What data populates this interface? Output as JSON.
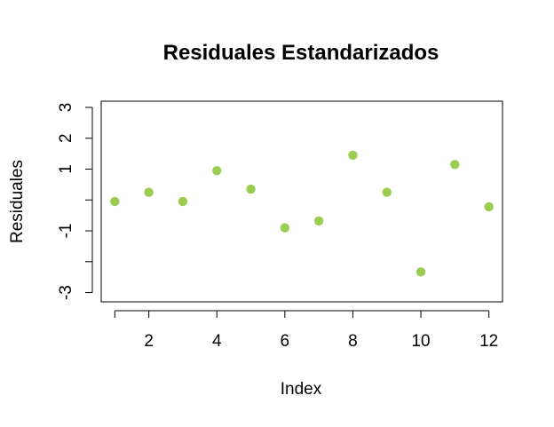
{
  "chart_data": {
    "type": "scatter",
    "title": "Residuales Estandarizados",
    "xlabel": "Index",
    "ylabel": "Residuales",
    "x": [
      1,
      2,
      3,
      4,
      5,
      6,
      7,
      8,
      9,
      10,
      11,
      12
    ],
    "y": [
      -0.05,
      0.25,
      -0.05,
      0.95,
      0.35,
      -0.9,
      -0.68,
      1.45,
      0.25,
      -2.33,
      1.15,
      -0.22
    ],
    "xlim": [
      0.6,
      12.4
    ],
    "ylim": [
      -3.3,
      3.2
    ],
    "x_ticks": [
      2,
      4,
      6,
      8,
      10,
      12
    ],
    "x_tick_labels": [
      "2",
      "4",
      "6",
      "8",
      "10",
      "12"
    ],
    "y_ticks": [
      3,
      2,
      1,
      0,
      -1,
      -2,
      -3
    ],
    "y_tick_labels": [
      "3",
      "2",
      "1",
      "",
      "-1",
      "",
      "-3"
    ],
    "point_color": "#9ACD50",
    "grid": false,
    "legend": "none"
  }
}
